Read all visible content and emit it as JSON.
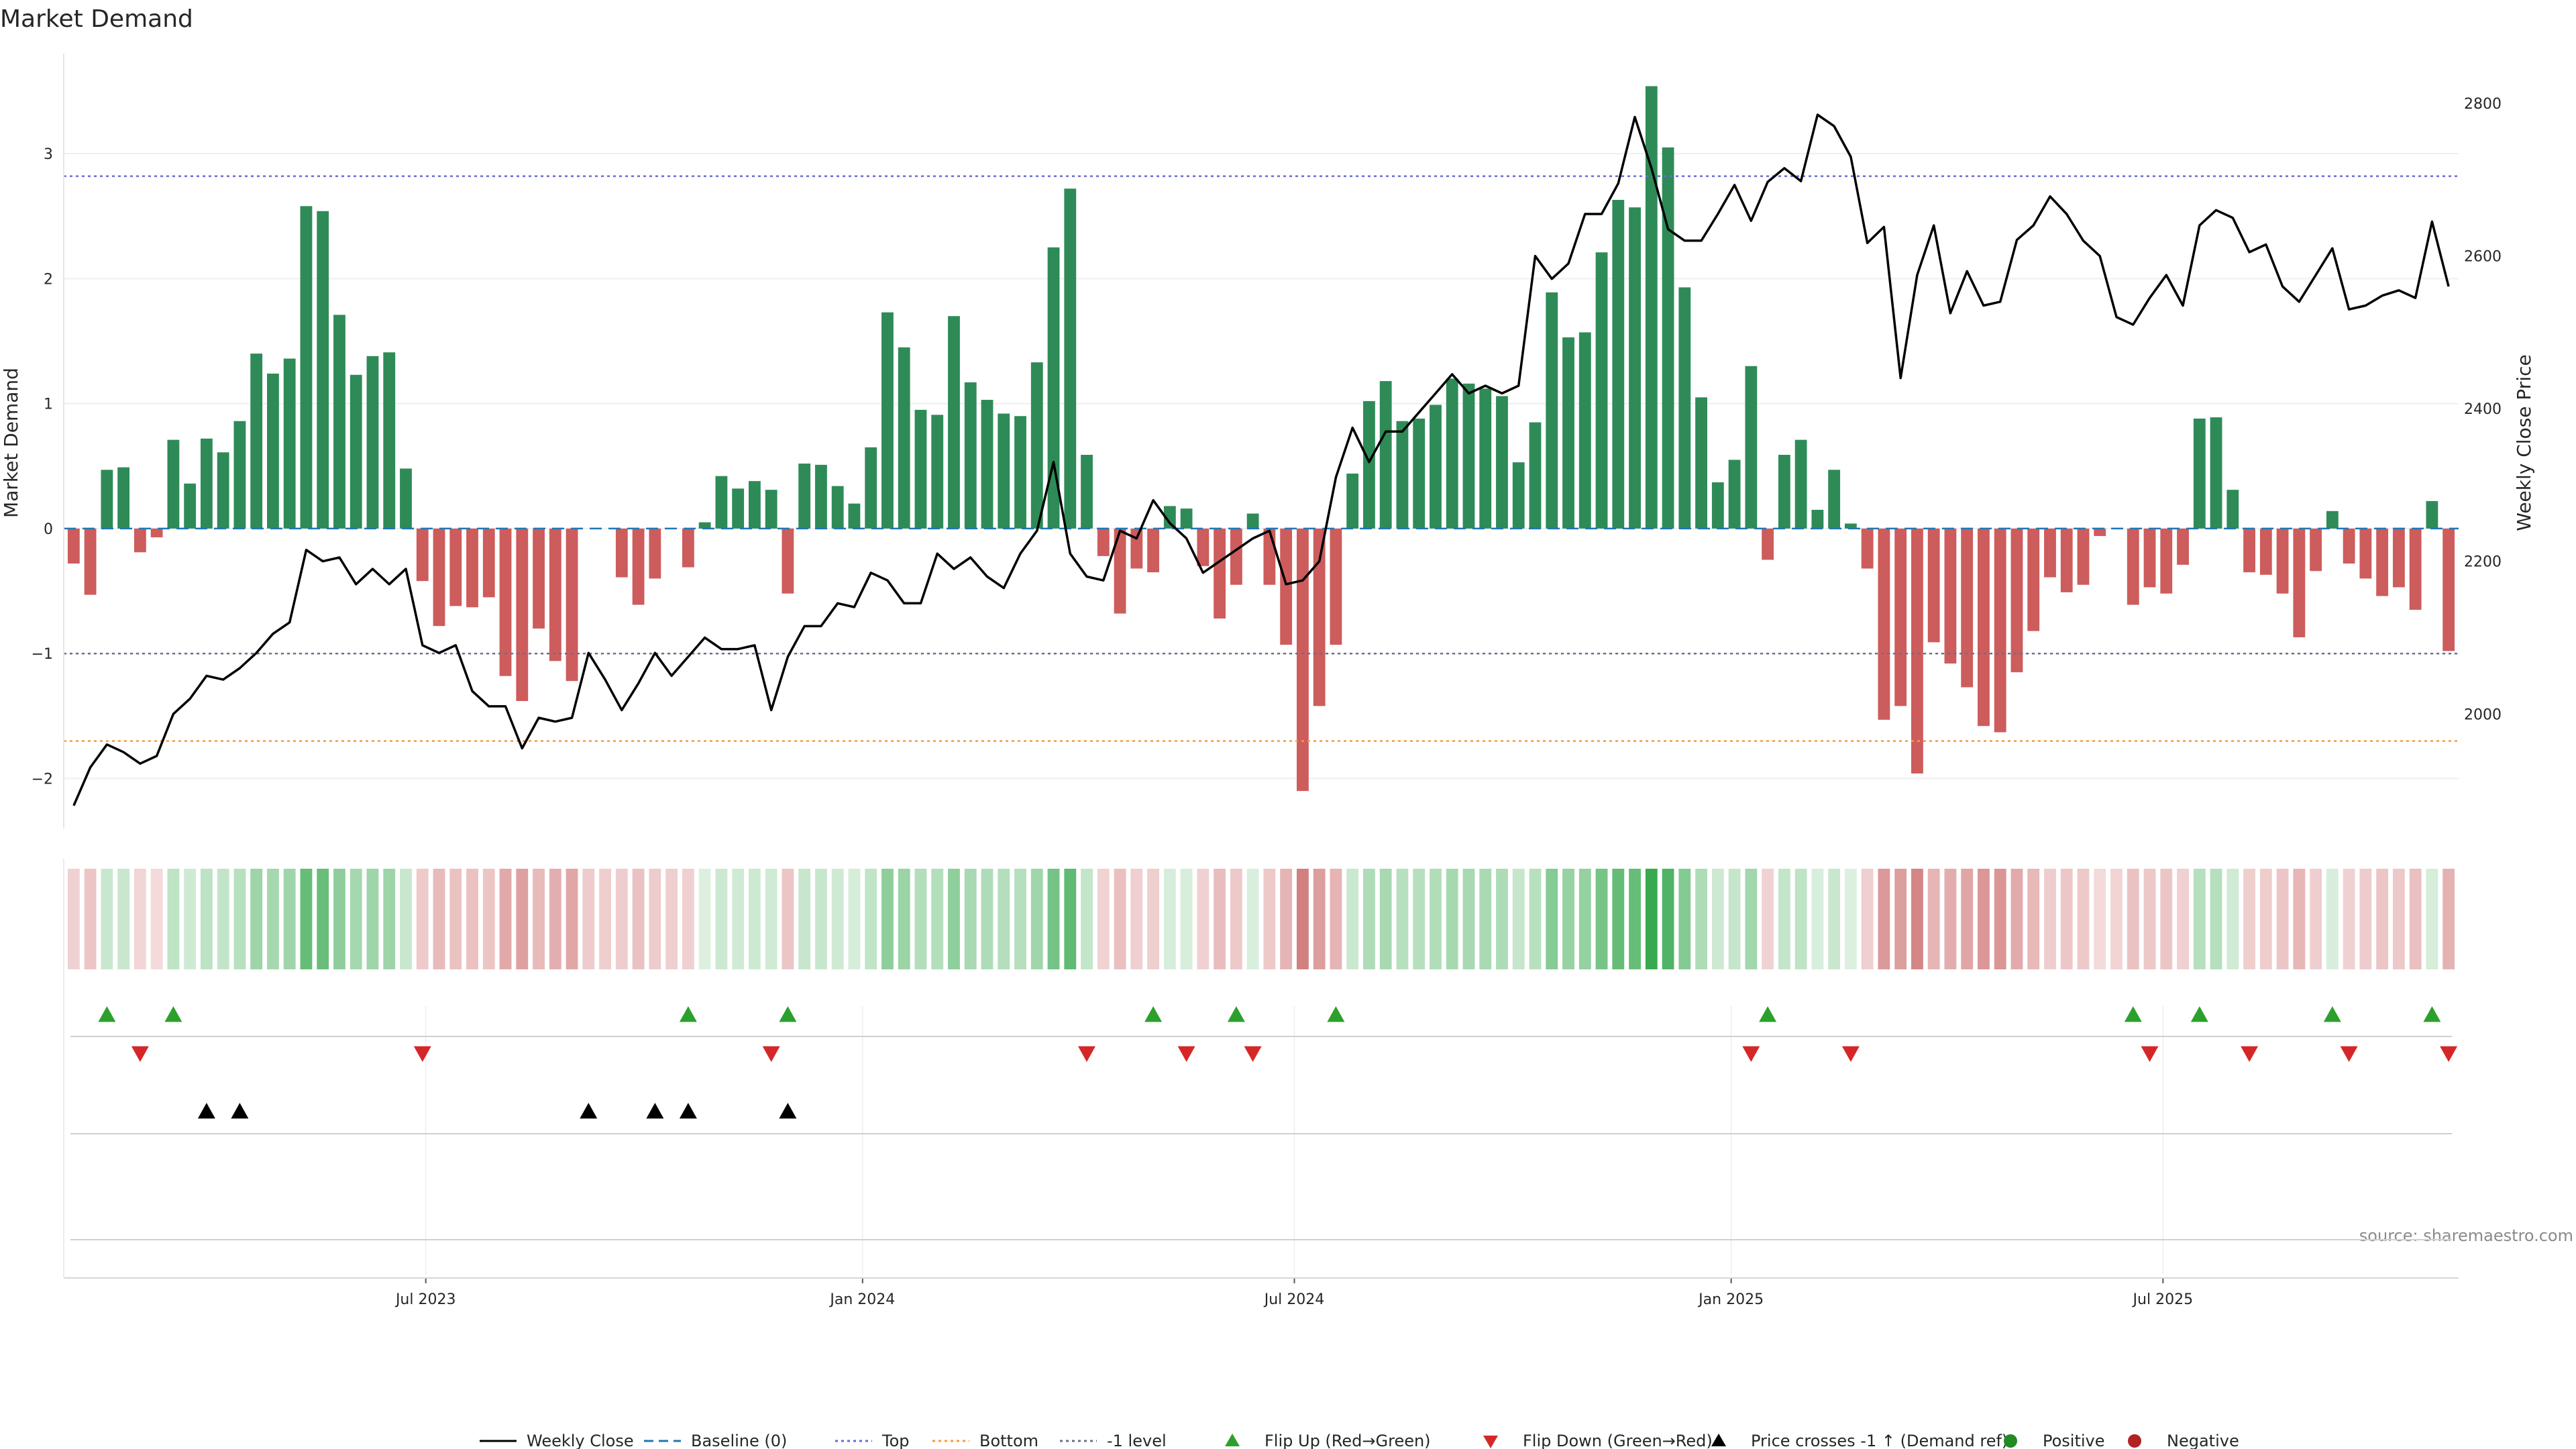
{
  "chart_data": {
    "type": "bar",
    "title": "Market Demand",
    "ylabel": "Market Demand",
    "y2label": "Weekly Close Price",
    "ylim": [
      -2.4,
      3.8
    ],
    "y2lim": [
      1850,
      2865
    ],
    "yticks": [
      -2,
      -1,
      0,
      1,
      2,
      3
    ],
    "yticklabels": [
      "−2",
      "−1",
      "0",
      "1",
      "2",
      "3"
    ],
    "y2ticks": [
      2000,
      2200,
      2400,
      2600,
      2800
    ],
    "y2ticklabels": [
      "2000",
      "2200",
      "2400",
      "2600",
      "2800"
    ],
    "week_range": [
      -0.6,
      143.6
    ],
    "x_ticks": [
      {
        "label": "Jul 2023",
        "week": 21.2
      },
      {
        "label": "Jan 2024",
        "week": 47.5
      },
      {
        "label": "Jul 2024",
        "week": 73.5
      },
      {
        "label": "Jan 2025",
        "week": 99.8
      },
      {
        "label": "Jul 2025",
        "week": 125.8
      }
    ],
    "reference_lines": [
      {
        "name": "Baseline (0)",
        "value": 0,
        "color": "#1f77b4",
        "dash": "18,10"
      },
      {
        "name": "Top",
        "value": 2.82,
        "color": "#6b6bd6",
        "dash": "4,5"
      },
      {
        "name": "Bottom",
        "value": -1.7,
        "color": "#f39c3c",
        "dash": "4,5"
      },
      {
        "name": "-1 level",
        "value": -1.0,
        "color": "#6e6e8a",
        "dash": "4,5"
      }
    ],
    "demand": [
      -0.28,
      -0.53,
      0.47,
      0.49,
      -0.19,
      -0.07,
      0.71,
      0.36,
      0.72,
      0.61,
      0.86,
      1.4,
      1.24,
      1.36,
      2.58,
      2.54,
      1.71,
      1.23,
      1.38,
      1.41,
      0.48,
      -0.42,
      -0.78,
      -0.62,
      -0.63,
      -0.55,
      -1.18,
      -1.38,
      -0.8,
      -1.06,
      -1.22,
      0.0,
      0.0,
      -0.39,
      -0.61,
      -0.4,
      0.0,
      -0.31,
      0.05,
      0.42,
      0.32,
      0.38,
      0.31,
      -0.52,
      0.52,
      0.51,
      0.34,
      0.2,
      0.65,
      1.73,
      1.45,
      0.95,
      0.91,
      1.7,
      1.17,
      1.03,
      0.92,
      0.9,
      1.33,
      2.25,
      2.72,
      0.59,
      -0.22,
      -0.68,
      -0.32,
      -0.35,
      0.18,
      0.16,
      -0.3,
      -0.72,
      -0.45,
      0.12,
      -0.45,
      -0.93,
      -2.1,
      -1.42,
      -0.93,
      0.44,
      1.02,
      1.18,
      0.86,
      0.88,
      0.99,
      1.2,
      1.16,
      1.12,
      1.06,
      0.53,
      0.85,
      1.89,
      1.53,
      1.57,
      2.21,
      2.63,
      2.57,
      3.54,
      3.05,
      1.93,
      1.05,
      0.37,
      0.55,
      1.3,
      -0.25,
      0.59,
      0.71,
      0.15,
      0.47,
      0.04,
      -0.32,
      -1.53,
      -1.42,
      -1.96,
      -0.91,
      -1.08,
      -1.27,
      -1.58,
      -1.63,
      -1.15,
      -0.82,
      -0.39,
      -0.51,
      -0.45,
      -0.06,
      0.0,
      -0.61,
      -0.47,
      -0.52,
      -0.29,
      0.88,
      0.89,
      0.31,
      -0.35,
      -0.37,
      -0.52,
      -0.87,
      -0.34,
      0.14,
      -0.28,
      -0.4,
      -0.54,
      -0.47,
      -0.65,
      0.22,
      -0.98
    ],
    "price": [
      1880,
      1930,
      1960,
      1950,
      1935,
      1945,
      2000,
      2020,
      2050,
      2045,
      2060,
      2080,
      2105,
      2120,
      2215,
      2200,
      2205,
      2170,
      2190,
      2170,
      2190,
      2090,
      2080,
      2090,
      2030,
      2010,
      2010,
      1955,
      1995,
      1990,
      1995,
      2080,
      2045,
      2005,
      2040,
      2080,
      2050,
      2075,
      2100,
      2085,
      2085,
      2090,
      2005,
      2075,
      2115,
      2115,
      2145,
      2140,
      2185,
      2175,
      2145,
      2145,
      2210,
      2190,
      2205,
      2180,
      2165,
      2210,
      2240,
      2330,
      2210,
      2180,
      2175,
      2240,
      2230,
      2280,
      2250,
      2230,
      2185,
      2200,
      2215,
      2230,
      2240,
      2170,
      2175,
      2200,
      2310,
      2375,
      2330,
      2370,
      2370,
      2395,
      2420,
      2445,
      2420,
      2430,
      2420,
      2430,
      2600,
      2570,
      2590,
      2655,
      2655,
      2695,
      2782,
      2715,
      2635,
      2620,
      2620,
      2655,
      2693,
      2646,
      2697,
      2715,
      2698,
      2785,
      2770,
      2730,
      2617,
      2638,
      2440,
      2575,
      2640,
      2525,
      2580,
      2535,
      2540,
      2621,
      2640,
      2678,
      2655,
      2620,
      2600,
      2520,
      2510,
      2545,
      2575,
      2535,
      2640,
      2660,
      2650,
      2605,
      2615,
      2560,
      2540,
      2575,
      2610,
      2530,
      2535,
      2548,
      2555,
      2545,
      2645,
      2560
    ],
    "colorband": [
      -0.28,
      -0.53,
      0.47,
      0.49,
      -0.19,
      -0.07,
      0.71,
      0.36,
      0.72,
      0.61,
      0.86,
      1.4,
      1.24,
      1.36,
      2.58,
      2.54,
      1.71,
      1.23,
      1.38,
      1.41,
      0.48,
      -0.42,
      -0.78,
      -0.62,
      -0.63,
      -0.55,
      -1.18,
      -1.38,
      -0.8,
      -1.06,
      -1.22,
      -0.4,
      -0.35,
      -0.39,
      -0.61,
      -0.4,
      -0.35,
      -0.31,
      0.05,
      0.42,
      0.32,
      0.38,
      0.31,
      -0.52,
      0.52,
      0.51,
      0.34,
      0.2,
      0.65,
      1.73,
      1.45,
      0.95,
      0.91,
      1.7,
      1.17,
      1.03,
      0.92,
      0.9,
      1.33,
      2.25,
      2.72,
      0.59,
      -0.22,
      -0.68,
      -0.32,
      -0.35,
      0.18,
      0.16,
      -0.3,
      -0.72,
      -0.45,
      0.12,
      -0.45,
      -0.93,
      -2.1,
      -1.42,
      -0.93,
      0.44,
      1.02,
      1.18,
      0.86,
      0.88,
      0.99,
      1.2,
      1.16,
      1.12,
      1.06,
      0.53,
      0.85,
      1.89,
      1.53,
      1.57,
      2.21,
      2.63,
      2.57,
      3.54,
      3.05,
      1.93,
      1.05,
      0.37,
      0.55,
      1.3,
      -0.25,
      0.59,
      0.71,
      0.15,
      0.47,
      0.04,
      -0.32,
      -1.53,
      -1.42,
      -1.96,
      -0.91,
      -1.08,
      -1.27,
      -1.58,
      -1.63,
      -1.15,
      -0.82,
      -0.39,
      -0.51,
      -0.45,
      -0.06,
      -0.2,
      -0.61,
      -0.47,
      -0.52,
      -0.29,
      0.88,
      0.89,
      0.31,
      -0.35,
      -0.37,
      -0.52,
      -0.87,
      -0.34,
      0.14,
      -0.28,
      -0.4,
      -0.54,
      -0.47,
      -0.65,
      0.22,
      -0.98
    ],
    "flip_up_weeks": [
      2,
      6,
      37,
      43,
      65,
      70,
      76,
      102,
      124,
      128,
      136,
      142
    ],
    "flip_down_weeks": [
      4,
      21,
      42,
      61,
      67,
      71,
      101,
      107,
      125,
      131,
      137,
      143
    ],
    "price_cross_weeks": [
      8,
      10,
      31,
      35,
      37,
      43
    ],
    "colors": {
      "positive_bar": "#2e8b57",
      "negative_bar": "#cd5c5c",
      "price_line": "#000000",
      "flip_up": "#2ca02c",
      "flip_down": "#d62728",
      "price_cross": "#000000",
      "positive_dot": "#228b22",
      "negative_dot": "#b22222"
    },
    "legend": [
      {
        "kind": "line",
        "label": "Weekly Close",
        "color": "#000000",
        "dash": ""
      },
      {
        "kind": "line",
        "label": "Baseline (0)",
        "color": "#1f77b4",
        "dash": "14,8"
      },
      {
        "kind": "line",
        "label": "Top",
        "color": "#6b6bd6",
        "dash": "4,5"
      },
      {
        "kind": "line",
        "label": "Bottom",
        "color": "#f39c3c",
        "dash": "4,5"
      },
      {
        "kind": "line",
        "label": "-1 level",
        "color": "#6e6e8a",
        "dash": "4,5"
      },
      {
        "kind": "tri-up",
        "label": "Flip Up (Red→Green)",
        "color": "#2ca02c"
      },
      {
        "kind": "tri-down",
        "label": "Flip Down (Green→Red)",
        "color": "#d62728"
      },
      {
        "kind": "tri-up",
        "label": "Price crosses -1 ↑ (Demand ref)",
        "color": "#000000"
      },
      {
        "kind": "dot",
        "label": "Positive",
        "color": "#228b22"
      },
      {
        "kind": "dot",
        "label": "Negative",
        "color": "#b22222"
      }
    ],
    "legend_position": "bottom",
    "source": "source: sharemaestro.com"
  }
}
